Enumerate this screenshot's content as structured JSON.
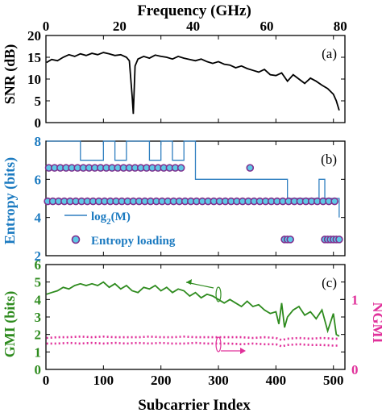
{
  "chart_data": [
    {
      "id": "a",
      "type": "line",
      "panel_label": "(a)",
      "top_xlabel": "Frequency (GHz)",
      "top_x_ticks": [
        0,
        20,
        40,
        60,
        80
      ],
      "top_xlim": [
        0,
        81.25
      ],
      "ylabel": "SNR (dB)",
      "y_ticks": [
        0,
        5,
        10,
        15,
        20
      ],
      "ylim": [
        0,
        20
      ],
      "xlim": [
        0,
        520
      ],
      "colors": {
        "line": "#000000"
      },
      "series": [
        {
          "x": [
            1,
            10,
            20,
            30,
            40,
            50,
            60,
            70,
            80,
            90,
            100,
            110,
            120,
            130,
            140,
            145,
            150,
            152,
            155,
            160,
            170,
            180,
            190,
            200,
            210,
            220,
            230,
            240,
            250,
            260,
            270,
            280,
            290,
            300,
            310,
            320,
            330,
            340,
            350,
            360,
            370,
            380,
            390,
            400,
            410,
            420,
            430,
            440,
            450,
            460,
            470,
            480,
            490,
            500,
            505,
            510
          ],
          "y": [
            13.8,
            14.5,
            14.2,
            15.0,
            15.6,
            15.2,
            15.8,
            15.4,
            15.9,
            15.6,
            16.1,
            15.8,
            15.4,
            15.6,
            15.0,
            14.2,
            6.0,
            2.0,
            13.0,
            14.6,
            15.2,
            14.8,
            15.5,
            15.2,
            15.0,
            14.6,
            15.2,
            14.8,
            14.5,
            14.2,
            14.6,
            14.0,
            13.6,
            14.0,
            13.4,
            13.2,
            12.6,
            13.0,
            12.4,
            12.0,
            11.6,
            12.2,
            11.0,
            10.8,
            11.4,
            9.5,
            11.0,
            10.0,
            9.0,
            10.2,
            9.5,
            8.6,
            7.8,
            6.5,
            5.0,
            2.8
          ]
        }
      ]
    },
    {
      "id": "b",
      "type": "scatter",
      "panel_label": "(b)",
      "ylabel": "Entropy (bits)",
      "y_ticks": [
        2,
        4,
        6,
        8
      ],
      "ylim": [
        2,
        8
      ],
      "xlim": [
        0,
        520
      ],
      "colors": {
        "line": "#2f7fc0",
        "marker_face": "#5ec8e6",
        "marker_edge": "#7e2f8e"
      },
      "legend": {
        "placement": "bottom-left",
        "entries": [
          "log2(M)",
          "Entropy loading"
        ]
      },
      "series": [
        {
          "kind": "step",
          "x": [
            1,
            20,
            40,
            60,
            80,
            100,
            120,
            140,
            160,
            180,
            200,
            220,
            240,
            260,
            280,
            300,
            320,
            340,
            360,
            380,
            400,
            410,
            420,
            440,
            460,
            475,
            485,
            500,
            510
          ],
          "y": [
            8,
            8,
            8,
            7,
            7,
            8,
            7,
            8,
            8,
            7,
            8,
            7,
            8,
            6,
            6,
            6,
            6,
            6,
            6,
            6,
            6,
            6,
            5,
            5,
            5,
            6,
            5,
            5,
            4
          ]
        },
        {
          "kind": "points",
          "x": [
            5,
            15,
            25,
            35,
            45,
            55,
            65,
            75,
            85,
            95,
            105,
            115,
            125,
            135,
            145,
            155,
            165,
            175,
            185,
            195,
            205,
            215,
            225,
            235,
            355
          ],
          "y": [
            6.6,
            6.6,
            6.6,
            6.6,
            6.6,
            6.6,
            6.6,
            6.6,
            6.6,
            6.6,
            6.6,
            6.6,
            6.6,
            6.6,
            6.6,
            6.6,
            6.6,
            6.6,
            6.6,
            6.6,
            6.6,
            6.6,
            6.6,
            6.6,
            6.6
          ]
        },
        {
          "kind": "points",
          "x": [
            3,
            12,
            22,
            32,
            42,
            52,
            62,
            72,
            82,
            92,
            102,
            112,
            122,
            132,
            142,
            152,
            162,
            172,
            182,
            192,
            202,
            212,
            222,
            232,
            242,
            252,
            262,
            272,
            282,
            292,
            302,
            312,
            322,
            332,
            342,
            352,
            362,
            372,
            382,
            392,
            402,
            412,
            422,
            432,
            442,
            452,
            462,
            472,
            482,
            492,
            502
          ],
          "y": [
            4.85,
            4.85,
            4.85,
            4.85,
            4.85,
            4.85,
            4.85,
            4.85,
            4.85,
            4.85,
            4.85,
            4.85,
            4.85,
            4.85,
            4.85,
            4.85,
            4.85,
            4.85,
            4.85,
            4.85,
            4.85,
            4.85,
            4.85,
            4.85,
            4.85,
            4.85,
            4.85,
            4.85,
            4.85,
            4.85,
            4.85,
            4.85,
            4.85,
            4.85,
            4.85,
            4.85,
            4.85,
            4.85,
            4.85,
            4.85,
            4.85,
            4.85,
            4.85,
            4.85,
            4.85,
            4.85,
            4.85,
            4.85,
            4.85,
            4.85,
            4.85
          ]
        },
        {
          "kind": "points",
          "x": [
            415,
            420,
            425,
            485,
            490,
            495,
            500,
            505,
            510
          ],
          "y": [
            2.85,
            2.85,
            2.85,
            2.85,
            2.85,
            2.85,
            2.85,
            2.85,
            2.85
          ]
        }
      ],
      "legend_labels": {
        "line_text": "log",
        "line_sub": "2",
        "line_arg": "(M)",
        "points_text": "Entropy loading"
      }
    },
    {
      "id": "c",
      "type": "line",
      "panel_label": "(c)",
      "xlabel": "Subcarrier Index",
      "x_ticks": [
        0,
        100,
        200,
        300,
        400,
        500
      ],
      "xlim": [
        0,
        520
      ],
      "ylabel": "GMI (bits)",
      "y_ticks": [
        0,
        1,
        2,
        3,
        4,
        5,
        6
      ],
      "ylim": [
        0,
        6
      ],
      "right_ylabel": "NGMI",
      "right_y_ticks": [
        0,
        1
      ],
      "right_ylim": [
        0,
        1.5
      ],
      "colors": {
        "gmi": "#2e8b1e",
        "ngmi": "#e0309a"
      },
      "series": [
        {
          "axis": "left",
          "x": [
            1,
            10,
            20,
            30,
            40,
            50,
            60,
            70,
            80,
            90,
            100,
            110,
            120,
            130,
            140,
            150,
            160,
            170,
            180,
            190,
            200,
            210,
            220,
            230,
            240,
            250,
            260,
            270,
            280,
            290,
            300,
            310,
            320,
            330,
            340,
            350,
            360,
            370,
            380,
            390,
            400,
            405,
            410,
            415,
            420,
            430,
            440,
            450,
            460,
            470,
            480,
            490,
            500,
            505,
            510
          ],
          "y": [
            4.3,
            4.4,
            4.5,
            4.7,
            4.6,
            4.8,
            4.9,
            4.8,
            4.9,
            4.8,
            5.0,
            4.7,
            4.9,
            4.6,
            4.8,
            4.5,
            4.4,
            4.7,
            4.6,
            4.8,
            4.5,
            4.7,
            4.4,
            4.6,
            4.5,
            4.2,
            4.4,
            4.1,
            4.3,
            4.2,
            4.0,
            3.8,
            4.0,
            3.8,
            3.6,
            3.9,
            3.6,
            3.7,
            3.4,
            3.2,
            3.3,
            2.6,
            3.8,
            2.4,
            3.0,
            3.4,
            3.6,
            3.1,
            3.3,
            2.9,
            3.4,
            2.2,
            3.2,
            2.0,
            1.9
          ]
        },
        {
          "axis": "right",
          "x": [
            1,
            20,
            40,
            60,
            80,
            100,
            120,
            140,
            160,
            180,
            200,
            220,
            240,
            260,
            280,
            300,
            320,
            340,
            360,
            380,
            400,
            410,
            420,
            440,
            460,
            480,
            500,
            510
          ],
          "y": [
            0.45,
            0.46,
            0.46,
            0.47,
            0.46,
            0.47,
            0.46,
            0.46,
            0.46,
            0.47,
            0.46,
            0.46,
            0.47,
            0.46,
            0.46,
            0.46,
            0.46,
            0.46,
            0.45,
            0.46,
            0.45,
            0.42,
            0.44,
            0.45,
            0.44,
            0.45,
            0.44,
            0.44
          ]
        },
        {
          "axis": "right",
          "x": [
            1,
            20,
            40,
            60,
            80,
            100,
            120,
            140,
            160,
            180,
            200,
            220,
            240,
            260,
            280,
            300,
            320,
            340,
            360,
            380,
            400,
            410,
            420,
            440,
            460,
            480,
            500,
            510
          ],
          "y": [
            0.37,
            0.37,
            0.38,
            0.37,
            0.38,
            0.37,
            0.38,
            0.37,
            0.38,
            0.37,
            0.38,
            0.37,
            0.37,
            0.38,
            0.37,
            0.37,
            0.37,
            0.36,
            0.37,
            0.36,
            0.36,
            0.33,
            0.35,
            0.36,
            0.35,
            0.35,
            0.34,
            0.34
          ]
        }
      ]
    }
  ]
}
